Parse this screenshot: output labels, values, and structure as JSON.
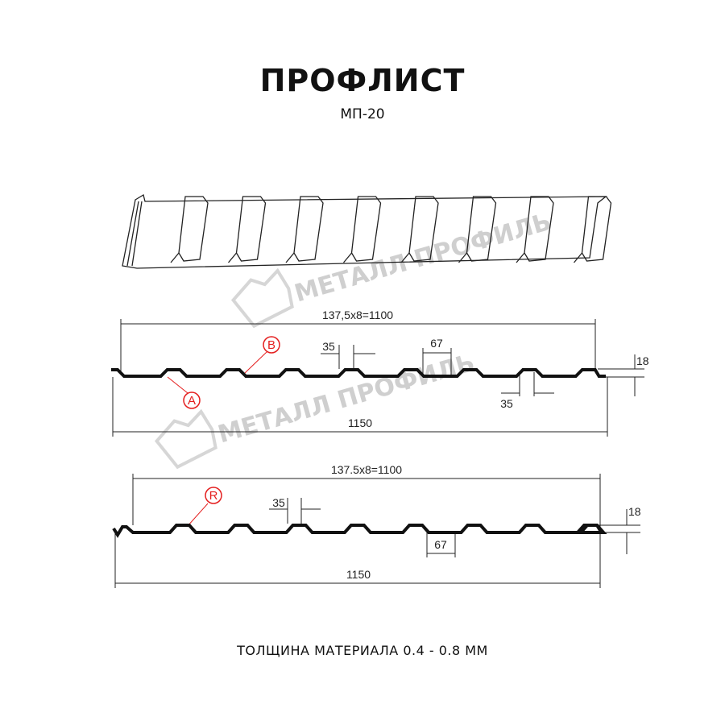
{
  "header": {
    "title": "ПРОФЛИСТ",
    "model": "МП-20"
  },
  "watermark": {
    "text": "МЕТАЛЛ ПРОФИЛЬ",
    "color": "#cfcfcf"
  },
  "profile_a": {
    "pitch_label": "137,5x8=1100",
    "width_label": "1150",
    "top_width_label": "35",
    "bottom_width_label": "35",
    "valley_label": "67",
    "height_label": "18",
    "marker_a": "A",
    "marker_b": "B"
  },
  "profile_b": {
    "pitch_label": "137.5x8=1100",
    "width_label": "1150",
    "top_width_label": "35",
    "valley_label": "67",
    "height_label": "18",
    "marker_r": "R"
  },
  "colors": {
    "profile": "#111111",
    "marker": "#e41e1e",
    "dimension": "#222222"
  },
  "footer": {
    "thickness": "ТОЛЩИНА МАТЕРИАЛА 0.4 - 0.8 ММ"
  }
}
